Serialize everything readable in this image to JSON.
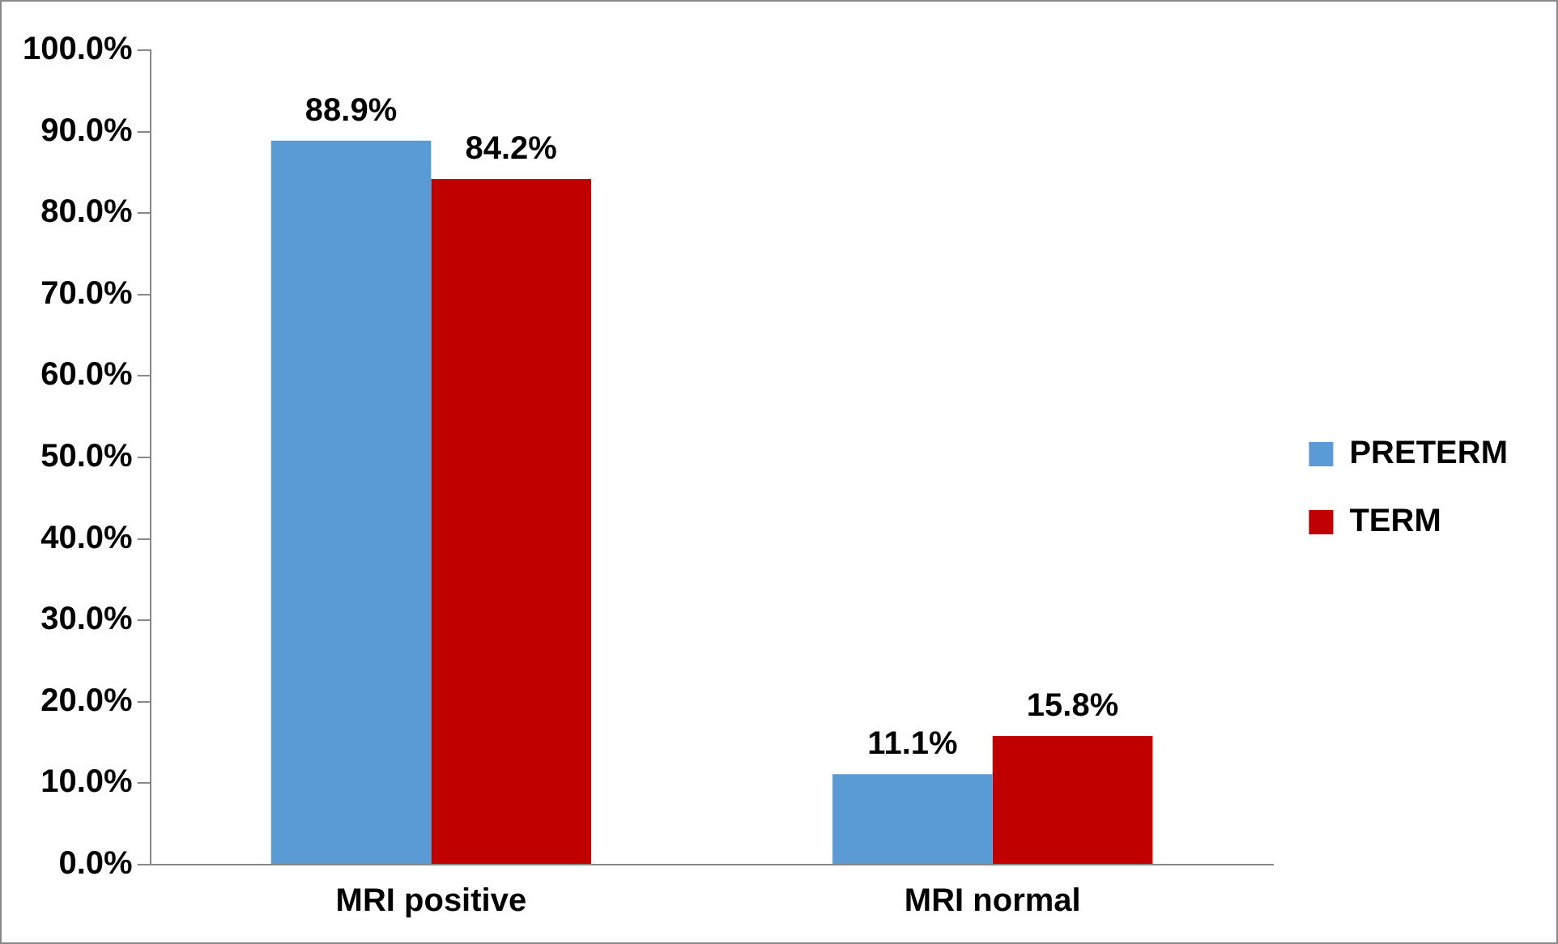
{
  "chart_data": {
    "type": "bar",
    "categories": [
      "MRI positive",
      "MRI normal"
    ],
    "series": [
      {
        "name": "PRETERM",
        "color": "#5b9bd5",
        "values": [
          88.9,
          11.1
        ],
        "value_labels": [
          "88.9%",
          "11.1%"
        ]
      },
      {
        "name": "TERM",
        "color": "#c00000",
        "values": [
          84.2,
          15.8
        ],
        "value_labels": [
          "84.2%",
          "15.8%"
        ]
      }
    ],
    "ylim": [
      0,
      100
    ],
    "yticks": [
      {
        "value": 0,
        "label": "0.0%"
      },
      {
        "value": 10,
        "label": "10.0%"
      },
      {
        "value": 20,
        "label": "20.0%"
      },
      {
        "value": 30,
        "label": "30.0%"
      },
      {
        "value": 40,
        "label": "40.0%"
      },
      {
        "value": 50,
        "label": "50.0%"
      },
      {
        "value": 60,
        "label": "60.0%"
      },
      {
        "value": 70,
        "label": "70.0%"
      },
      {
        "value": 80,
        "label": "80.0%"
      },
      {
        "value": 90,
        "label": "90.0%"
      },
      {
        "value": 100,
        "label": "100.0%"
      }
    ],
    "grid": false,
    "legend": "right"
  }
}
